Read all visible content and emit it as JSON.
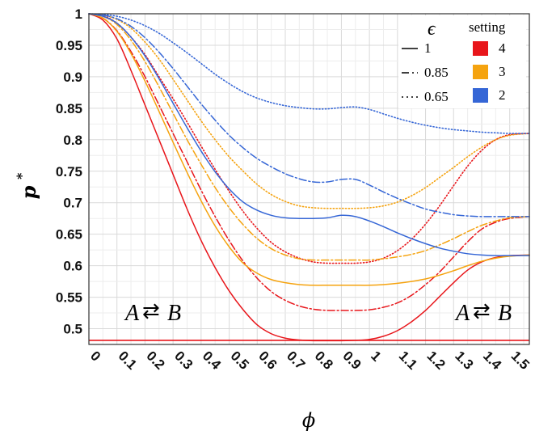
{
  "chart_data": {
    "type": "line",
    "xlabel": "ϕ",
    "ylabel": "p",
    "ylabel_superscript": "*",
    "xlim": [
      0,
      1.57
    ],
    "ylim": [
      0.475,
      1.0
    ],
    "xticks": [
      "0",
      "0.1",
      "0.2",
      "0.3",
      "0.4",
      "0.5",
      "0.6",
      "0.7",
      "0.8",
      "0.9",
      "1",
      "1.1",
      "1.2",
      "1.3",
      "1.4",
      "1.5"
    ],
    "yticks": [
      "0.5",
      "0.55",
      "0.6",
      "0.65",
      "0.7",
      "0.75",
      "0.8",
      "0.85",
      "0.9",
      "0.95",
      "1"
    ],
    "grid": true,
    "legend": {
      "placement": "top-right",
      "epsilon_title": "ϵ",
      "setting_title": "setting",
      "epsilon_entries": [
        {
          "label": "1",
          "style": "solid"
        },
        {
          "label": "0.85",
          "style": "dashdot"
        },
        {
          "label": "0.65",
          "style": "dotted"
        }
      ],
      "setting_entries": [
        {
          "label": "4",
          "color": "#e8161b"
        },
        {
          "label": "3",
          "color": "#f5a30f"
        },
        {
          "label": "2",
          "color": "#3566d6"
        }
      ]
    },
    "annotations": [
      {
        "text": "A",
        "arrows": "⇄",
        "text2": "B",
        "position": "bottom-left"
      },
      {
        "text": "A",
        "arrows": "⇄",
        "text2": "B",
        "position": "bottom-right"
      }
    ],
    "reference_line": {
      "y": 0.4815,
      "color": "#e8161b"
    },
    "x": [
      0,
      0.05,
      0.1,
      0.15,
      0.2,
      0.25,
      0.3,
      0.35,
      0.4,
      0.45,
      0.5,
      0.55,
      0.6,
      0.65,
      0.7,
      0.75,
      0.8,
      0.85,
      0.9,
      0.95,
      1.0,
      1.05,
      1.1,
      1.15,
      1.2,
      1.25,
      1.3,
      1.35,
      1.4,
      1.45,
      1.5,
      1.57
    ],
    "series": [
      {
        "setting": "4",
        "epsilon": "1",
        "color": "#e8161b",
        "style": "solid",
        "values": [
          1.0,
          0.99,
          0.96,
          0.91,
          0.855,
          0.8,
          0.745,
          0.69,
          0.64,
          0.597,
          0.56,
          0.53,
          0.506,
          0.492,
          0.485,
          0.482,
          0.481,
          0.481,
          0.481,
          0.4815,
          0.483,
          0.488,
          0.497,
          0.511,
          0.529,
          0.551,
          0.573,
          0.593,
          0.606,
          0.613,
          0.616,
          0.617
        ]
      },
      {
        "setting": "4",
        "epsilon": "0.85",
        "color": "#e8161b",
        "style": "dashdot",
        "values": [
          1.0,
          0.993,
          0.973,
          0.94,
          0.9,
          0.855,
          0.81,
          0.765,
          0.72,
          0.678,
          0.64,
          0.607,
          0.58,
          0.559,
          0.545,
          0.536,
          0.531,
          0.529,
          0.529,
          0.529,
          0.53,
          0.534,
          0.541,
          0.553,
          0.57,
          0.59,
          0.614,
          0.638,
          0.658,
          0.669,
          0.675,
          0.678
        ]
      },
      {
        "setting": "4",
        "epsilon": "0.65",
        "color": "#e8161b",
        "style": "dotted",
        "values": [
          1.0,
          0.997,
          0.985,
          0.963,
          0.935,
          0.9,
          0.865,
          0.828,
          0.79,
          0.753,
          0.718,
          0.686,
          0.659,
          0.637,
          0.622,
          0.612,
          0.606,
          0.604,
          0.604,
          0.604,
          0.606,
          0.612,
          0.624,
          0.642,
          0.666,
          0.695,
          0.727,
          0.758,
          0.783,
          0.8,
          0.808,
          0.81
        ]
      },
      {
        "setting": "3",
        "epsilon": "1",
        "color": "#f5a30f",
        "style": "solid",
        "values": [
          1.0,
          0.993,
          0.972,
          0.937,
          0.893,
          0.845,
          0.796,
          0.748,
          0.703,
          0.663,
          0.63,
          0.604,
          0.588,
          0.578,
          0.573,
          0.57,
          0.569,
          0.569,
          0.569,
          0.569,
          0.569,
          0.57,
          0.572,
          0.575,
          0.579,
          0.585,
          0.592,
          0.6,
          0.607,
          0.612,
          0.615,
          0.617
        ]
      },
      {
        "setting": "3",
        "epsilon": "0.85",
        "color": "#f5a30f",
        "style": "dashdot",
        "values": [
          1.0,
          0.996,
          0.983,
          0.958,
          0.924,
          0.884,
          0.842,
          0.8,
          0.761,
          0.724,
          0.692,
          0.665,
          0.643,
          0.627,
          0.617,
          0.611,
          0.609,
          0.609,
          0.609,
          0.609,
          0.609,
          0.611,
          0.614,
          0.618,
          0.624,
          0.633,
          0.643,
          0.654,
          0.664,
          0.671,
          0.676,
          0.678
        ]
      },
      {
        "setting": "3",
        "epsilon": "0.65",
        "color": "#f5a30f",
        "style": "dotted",
        "values": [
          1.0,
          0.998,
          0.991,
          0.977,
          0.955,
          0.928,
          0.896,
          0.863,
          0.83,
          0.8,
          0.773,
          0.75,
          0.729,
          0.713,
          0.702,
          0.695,
          0.692,
          0.691,
          0.691,
          0.691,
          0.692,
          0.695,
          0.701,
          0.711,
          0.724,
          0.74,
          0.756,
          0.773,
          0.788,
          0.8,
          0.807,
          0.81
        ]
      },
      {
        "setting": "2",
        "epsilon": "1",
        "color": "#3566d6",
        "style": "solid",
        "values": [
          1.0,
          0.996,
          0.985,
          0.963,
          0.933,
          0.897,
          0.858,
          0.819,
          0.782,
          0.749,
          0.722,
          0.701,
          0.688,
          0.68,
          0.676,
          0.675,
          0.675,
          0.676,
          0.68,
          0.678,
          0.671,
          0.662,
          0.652,
          0.643,
          0.635,
          0.628,
          0.623,
          0.619,
          0.617,
          0.616,
          0.616,
          0.616
        ]
      },
      {
        "setting": "2",
        "epsilon": "0.85",
        "color": "#3566d6",
        "style": "dashdot",
        "values": [
          1.0,
          0.998,
          0.992,
          0.98,
          0.962,
          0.939,
          0.913,
          0.885,
          0.857,
          0.831,
          0.807,
          0.787,
          0.77,
          0.757,
          0.746,
          0.738,
          0.733,
          0.733,
          0.737,
          0.737,
          0.728,
          0.717,
          0.707,
          0.698,
          0.69,
          0.685,
          0.681,
          0.679,
          0.678,
          0.678,
          0.678,
          0.678
        ]
      },
      {
        "setting": "2",
        "epsilon": "0.65",
        "color": "#3566d6",
        "style": "dotted",
        "values": [
          1.0,
          0.999,
          0.996,
          0.99,
          0.981,
          0.969,
          0.954,
          0.938,
          0.921,
          0.904,
          0.889,
          0.876,
          0.866,
          0.859,
          0.854,
          0.851,
          0.849,
          0.849,
          0.851,
          0.852,
          0.848,
          0.841,
          0.834,
          0.828,
          0.823,
          0.819,
          0.816,
          0.814,
          0.812,
          0.811,
          0.81,
          0.81
        ]
      }
    ]
  }
}
